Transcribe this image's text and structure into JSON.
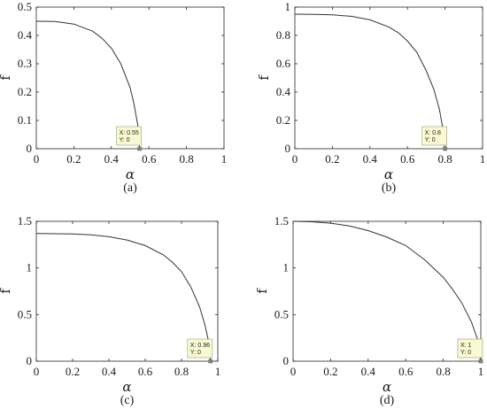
{
  "chart_data": [
    {
      "type": "line",
      "caption": "(a)",
      "xlabel": "α",
      "ylabel": "f",
      "xlim": [
        0,
        1
      ],
      "ylim": [
        0,
        0.5
      ],
      "xticks": [
        "0",
        "0.2",
        "0.4",
        "0.6",
        "0.8",
        "1"
      ],
      "yticks": [
        "0",
        "0.1",
        "0.2",
        "0.3",
        "0.4",
        "0.5"
      ],
      "x": [
        0,
        0.1,
        0.2,
        0.3,
        0.35,
        0.4,
        0.45,
        0.5,
        0.52,
        0.54,
        0.55
      ],
      "y": [
        0.45,
        0.449,
        0.44,
        0.415,
        0.39,
        0.355,
        0.3,
        0.215,
        0.16,
        0.085,
        0
      ],
      "datatip": {
        "x": 0.55,
        "y": 0,
        "lines": [
          "X: 0.55",
          "Y: 0"
        ]
      }
    },
    {
      "type": "line",
      "caption": "(b)",
      "xlabel": "α",
      "ylabel": "f",
      "xlim": [
        0,
        1
      ],
      "ylim": [
        0,
        1
      ],
      "xticks": [
        "0",
        "0.2",
        "0.4",
        "0.6",
        "0.8",
        "1"
      ],
      "yticks": [
        "0",
        "0.2",
        "0.4",
        "0.6",
        "0.8",
        "1"
      ],
      "x": [
        0,
        0.1,
        0.2,
        0.3,
        0.4,
        0.5,
        0.55,
        0.6,
        0.65,
        0.7,
        0.74,
        0.77,
        0.79,
        0.8
      ],
      "y": [
        0.95,
        0.949,
        0.945,
        0.935,
        0.91,
        0.86,
        0.82,
        0.76,
        0.68,
        0.55,
        0.42,
        0.28,
        0.13,
        0
      ],
      "datatip": {
        "x": 0.8,
        "y": 0,
        "lines": [
          "X: 0.8",
          "Y: 0"
        ]
      }
    },
    {
      "type": "line",
      "caption": "(c)",
      "xlabel": "α",
      "ylabel": "f",
      "xlim": [
        0,
        1
      ],
      "ylim": [
        0,
        1.5
      ],
      "xticks": [
        "0",
        "0.2",
        "0.4",
        "0.6",
        "0.8",
        "1"
      ],
      "yticks": [
        "0",
        "0.5",
        "1",
        "1.5"
      ],
      "x": [
        0,
        0.2,
        0.3,
        0.4,
        0.5,
        0.6,
        0.7,
        0.75,
        0.8,
        0.85,
        0.9,
        0.93,
        0.95,
        0.96
      ],
      "y": [
        1.37,
        1.365,
        1.355,
        1.335,
        1.3,
        1.24,
        1.14,
        1.06,
        0.96,
        0.8,
        0.58,
        0.38,
        0.2,
        0
      ],
      "datatip": {
        "x": 0.96,
        "y": 0,
        "lines": [
          "X: 0.96",
          "Y: 0"
        ]
      }
    },
    {
      "type": "line",
      "caption": "(d)",
      "xlabel": "α",
      "ylabel": "f",
      "xlim": [
        0,
        1
      ],
      "ylim": [
        0,
        1.5
      ],
      "xticks": [
        "0",
        "0.2",
        "0.4",
        "0.6",
        "0.8",
        "1"
      ],
      "yticks": [
        "0",
        "0.5",
        "1",
        "1.5"
      ],
      "x": [
        0,
        0.1,
        0.2,
        0.3,
        0.4,
        0.5,
        0.6,
        0.7,
        0.8,
        0.85,
        0.9,
        0.95,
        0.98,
        1
      ],
      "y": [
        1.5,
        1.495,
        1.48,
        1.45,
        1.4,
        1.33,
        1.24,
        1.09,
        0.9,
        0.77,
        0.62,
        0.42,
        0.25,
        0
      ],
      "datatip": {
        "x": 1,
        "y": 0,
        "lines": [
          "X: 1",
          "Y: 0"
        ]
      }
    }
  ]
}
